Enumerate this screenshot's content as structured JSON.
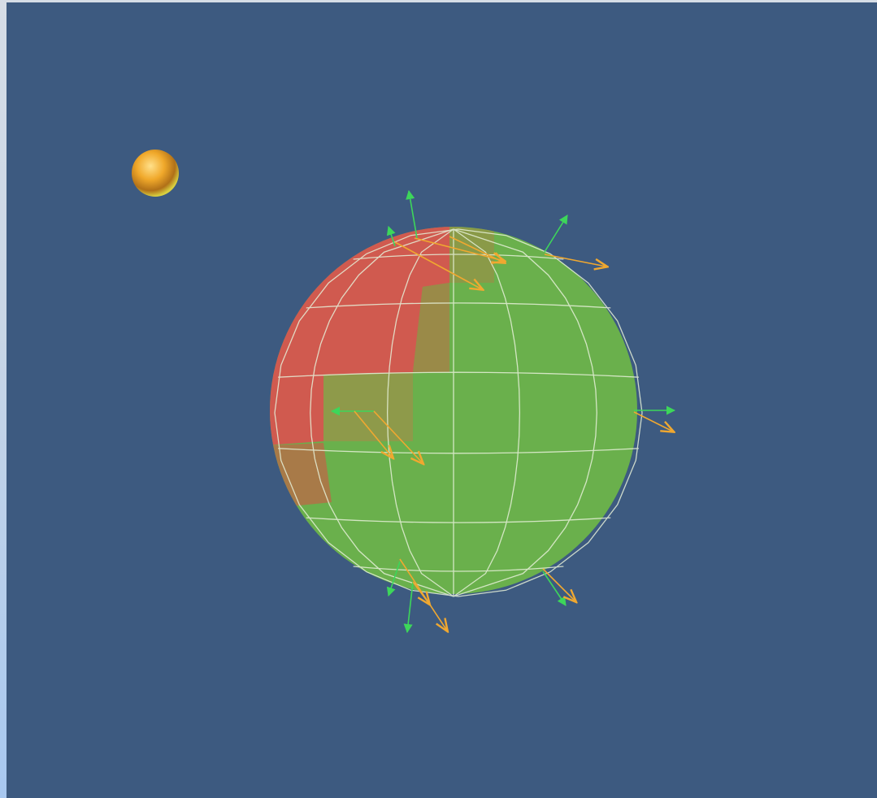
{
  "scene": {
    "background_color": "#3d5a80",
    "frame_color": "#c9d6e6",
    "light_source": {
      "icon": "light-bulb-sphere-icon",
      "color": "#f0b030"
    },
    "sphere": {
      "icon": "tessellated-sphere-icon",
      "base_color": "#6ab04c",
      "highlight_color": "#d9534f",
      "wire_color": "#e6f0d8"
    },
    "vectors": {
      "normal_color": "#3dd65a",
      "reflection_color": "#f0a830"
    }
  }
}
